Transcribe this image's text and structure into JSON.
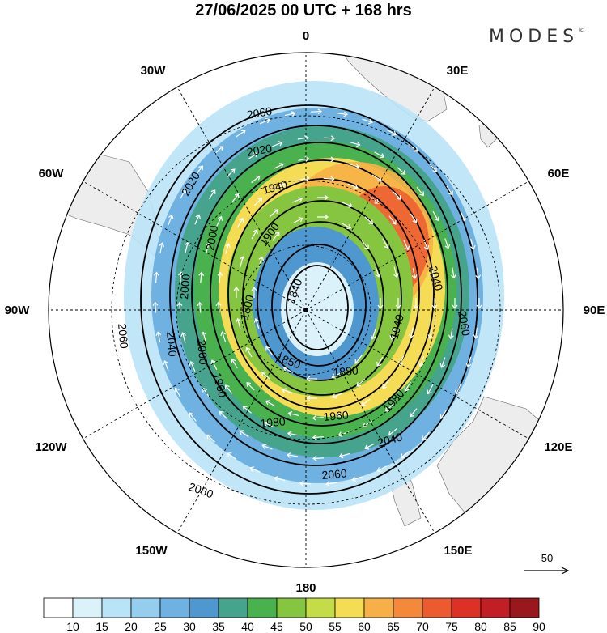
{
  "title": "27/06/2025  00 UTC  + 168 hrs",
  "brand": "MODES",
  "brand_mark": "©",
  "longitudes": [
    "0",
    "30E",
    "60E",
    "90E",
    "120E",
    "150E",
    "180",
    "150W",
    "120W",
    "90W",
    "60W",
    "30W"
  ],
  "contour_labels": [
    "2060",
    "2020",
    "2020",
    "1940",
    "1900",
    "2000",
    "2000",
    "1840",
    "1800",
    "2060",
    "2040",
    "2000",
    "2040",
    "2060",
    "1980",
    "1960",
    "1960",
    "1980",
    "1900",
    "1980",
    "1940",
    "1880",
    "1980",
    "2040",
    "2060",
    "2060",
    "1850"
  ],
  "vector_reference": "50",
  "colorbar": {
    "labels": [
      "10",
      "15",
      "20",
      "25",
      "30",
      "35",
      "40",
      "45",
      "50",
      "55",
      "60",
      "65",
      "70",
      "75",
      "80",
      "85",
      "90"
    ],
    "colors": [
      "#ffffff",
      "#dcf2fb",
      "#b9e3f6",
      "#94cdee",
      "#6fb2e2",
      "#4f97cf",
      "#46a48c",
      "#49b24f",
      "#86c53f",
      "#c4dc47",
      "#f4dc55",
      "#f7b047",
      "#f4883b",
      "#ec5a30",
      "#dd3027",
      "#c21e26",
      "#99181d"
    ]
  },
  "colors": {
    "land": "#ededed",
    "contour": "#000000",
    "arrows": "#ffffff"
  }
}
